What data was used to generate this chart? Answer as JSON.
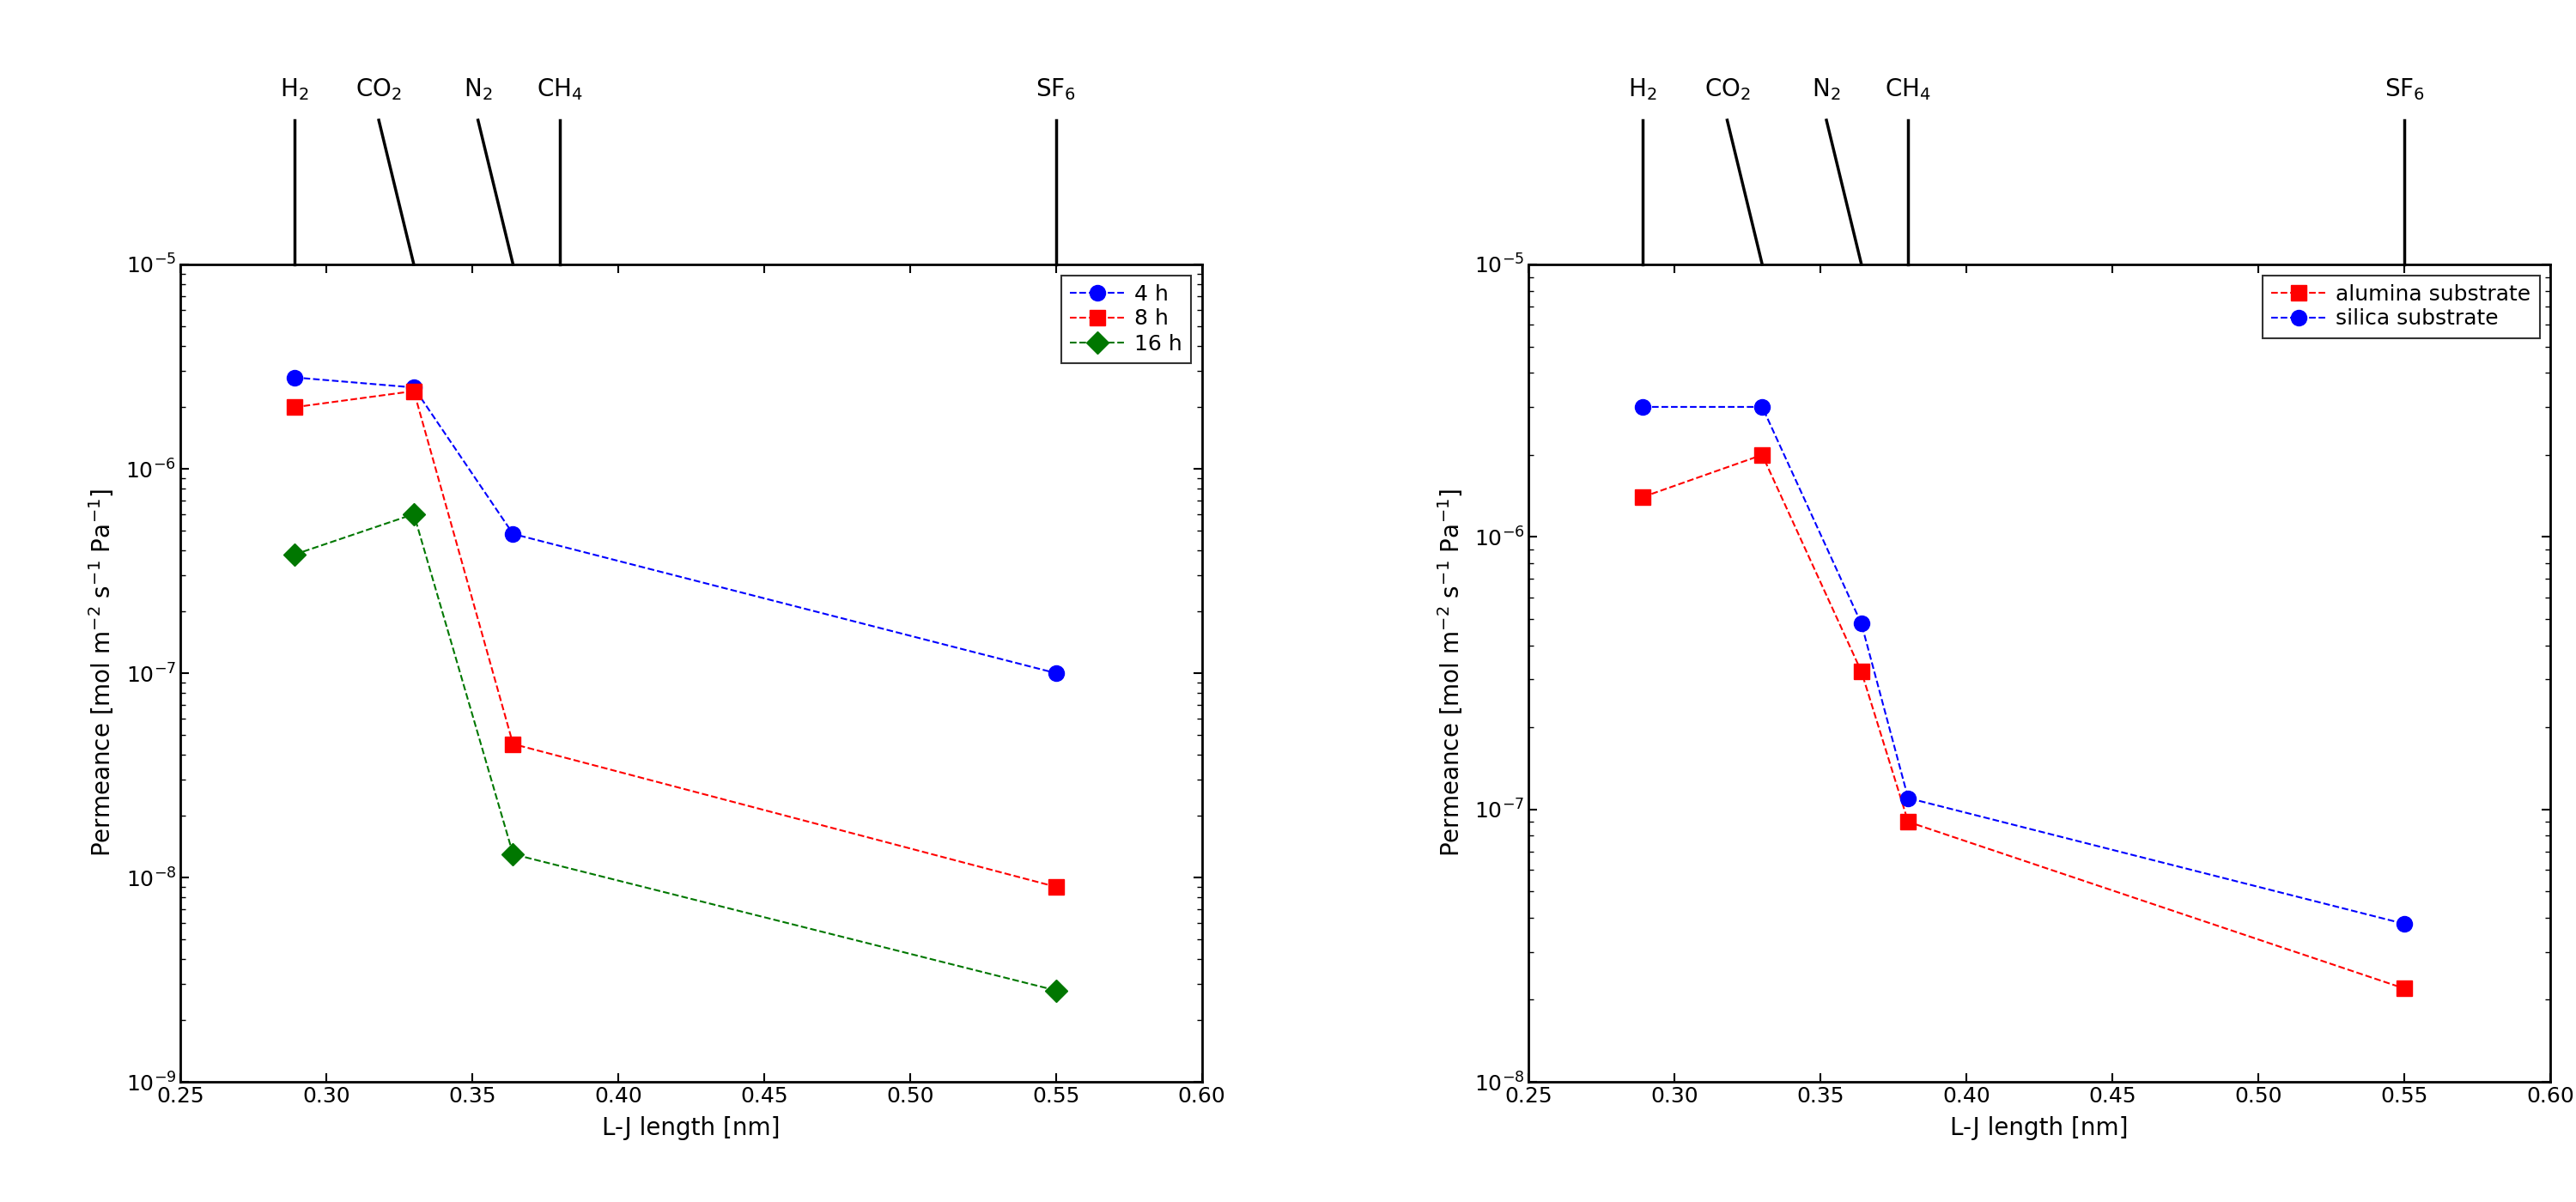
{
  "left_chart": {
    "series": [
      {
        "label": "4 h",
        "color": "#0000FF",
        "marker": "o",
        "x": [
          0.289,
          0.33,
          0.364,
          0.55
        ],
        "y": [
          2.8e-06,
          2.5e-06,
          4.8e-07,
          1e-07
        ]
      },
      {
        "label": "8 h",
        "color": "#FF0000",
        "marker": "s",
        "x": [
          0.289,
          0.33,
          0.364,
          0.55
        ],
        "y": [
          2e-06,
          2.4e-06,
          4.5e-08,
          9e-09
        ]
      },
      {
        "label": "16 h",
        "color": "#007700",
        "marker": "D",
        "x": [
          0.289,
          0.33,
          0.364,
          0.55
        ],
        "y": [
          3.8e-07,
          6e-07,
          1.3e-08,
          2.8e-09
        ]
      }
    ],
    "xlim": [
      0.25,
      0.6
    ],
    "ylim": [
      1e-09,
      1e-05
    ],
    "xlabel": "L-J length [nm]",
    "ylabel": "Permeance [mol m$^{-2}$ s$^{-1}$ Pa$^{-1}$]",
    "xticks": [
      0.25,
      0.3,
      0.35,
      0.4,
      0.45,
      0.5,
      0.55,
      0.6
    ]
  },
  "right_chart": {
    "series": [
      {
        "label": "alumina substrate",
        "color": "#FF0000",
        "marker": "s",
        "x": [
          0.289,
          0.33,
          0.364,
          0.38,
          0.55
        ],
        "y": [
          1.4e-06,
          2e-06,
          3.2e-07,
          9e-08,
          2.2e-08
        ]
      },
      {
        "label": "silica substrate",
        "color": "#0000FF",
        "marker": "o",
        "x": [
          0.289,
          0.33,
          0.364,
          0.38,
          0.55
        ],
        "y": [
          3e-06,
          3e-06,
          4.8e-07,
          1.1e-07,
          3.8e-08
        ]
      }
    ],
    "xlim": [
      0.25,
      0.6
    ],
    "ylim": [
      1e-08,
      1e-05
    ],
    "xlabel": "L-J length [nm]",
    "ylabel": "Permeance [mol m$^{-2}$ s$^{-1}$ Pa$^{-1}$]",
    "xticks": [
      0.25,
      0.3,
      0.35,
      0.4,
      0.45,
      0.5,
      0.55,
      0.6
    ]
  },
  "gases": [
    {
      "label": "H$_2$",
      "x_data": 0.289,
      "x_label": 0.289,
      "angle": false
    },
    {
      "label": "CO$_2$",
      "x_data": 0.33,
      "x_label": 0.33,
      "angle": true
    },
    {
      "label": "N$_2$",
      "x_data": 0.364,
      "x_label": 0.364,
      "angle": true
    },
    {
      "label": "CH$_4$",
      "x_data": 0.38,
      "x_label": 0.38,
      "angle": false
    },
    {
      "label": "SF$_6$",
      "x_data": 0.55,
      "x_label": 0.55,
      "angle": false
    }
  ],
  "marker_size": 13,
  "line_width": 1.5,
  "font_size_ticks": 18,
  "font_size_labels": 20,
  "font_size_legend": 18,
  "font_size_gas": 20
}
